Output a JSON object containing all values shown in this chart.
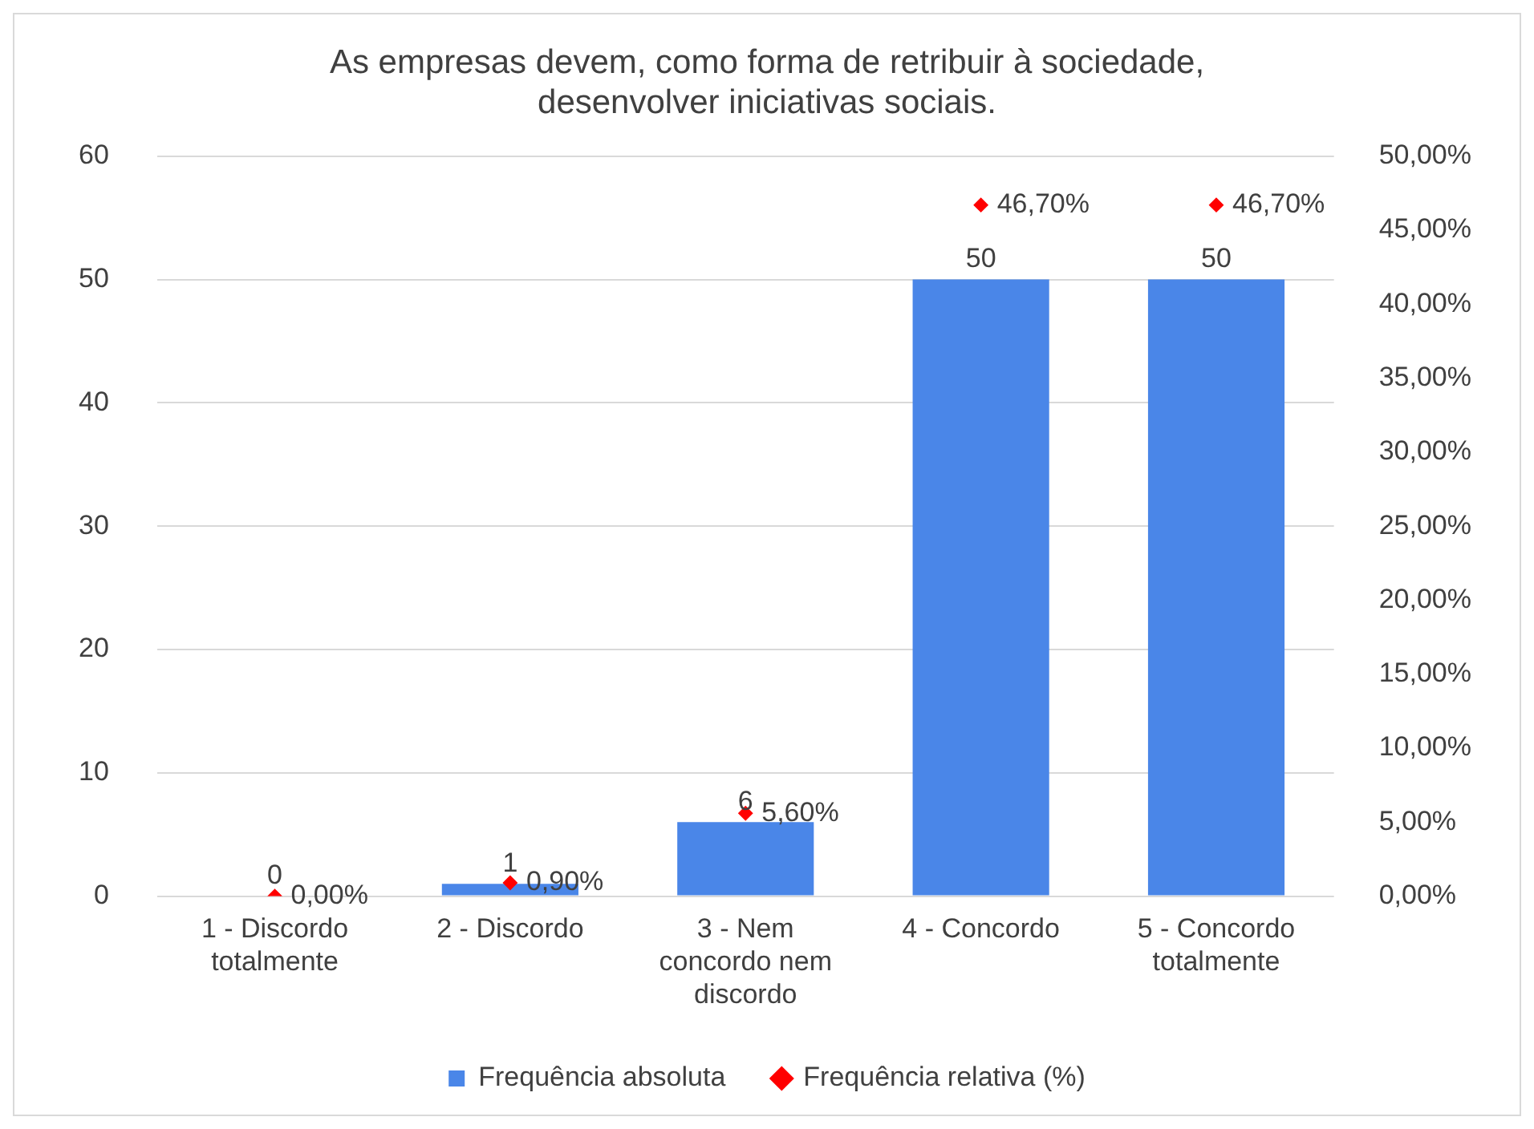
{
  "chart_data": {
    "type": "bar",
    "title": "As empresas devem, como forma de retribuir à sociedade, desenvolver iniciativas sociais.",
    "categories": [
      "1 - Discordo totalmente",
      "2 - Discordo",
      "3 - Nem concordo nem discordo",
      "4 - Concordo",
      "5 - Concordo totalmente"
    ],
    "series": [
      {
        "name": "Frequência absoluta",
        "color": "#4a86e8",
        "values": [
          0,
          1,
          6,
          50,
          50
        ],
        "value_labels": [
          "0",
          "1",
          "6",
          "50",
          "50"
        ]
      },
      {
        "name": "Frequência relativa (%)",
        "type": "scatter",
        "axis": "y2",
        "color": "#ff0000",
        "values": [
          0,
          0.9,
          5.6,
          46.7,
          46.7
        ],
        "value_labels": [
          "0,00%",
          "0,90%",
          "5,60%",
          "46,70%",
          "46,70%"
        ]
      }
    ],
    "ylim": [
      0,
      60
    ],
    "yticks": [
      0,
      10,
      20,
      30,
      40,
      50,
      60
    ],
    "y2lim": [
      0,
      50
    ],
    "y2ticks": [
      {
        "value": 0,
        "label": "0,00%"
      },
      {
        "value": 5,
        "label": "5,00%"
      },
      {
        "value": 10,
        "label": "10,00%"
      },
      {
        "value": 15,
        "label": "15,00%"
      },
      {
        "value": 20,
        "label": "20,00%"
      },
      {
        "value": 25,
        "label": "25,00%"
      },
      {
        "value": 30,
        "label": "30,00%"
      },
      {
        "value": 35,
        "label": "35,00%"
      },
      {
        "value": 40,
        "label": "40,00%"
      },
      {
        "value": 45,
        "label": "45,00%"
      },
      {
        "value": 50,
        "label": "50,00%"
      }
    ],
    "grid": "y",
    "legend": "bottom",
    "marker": "diamond"
  }
}
